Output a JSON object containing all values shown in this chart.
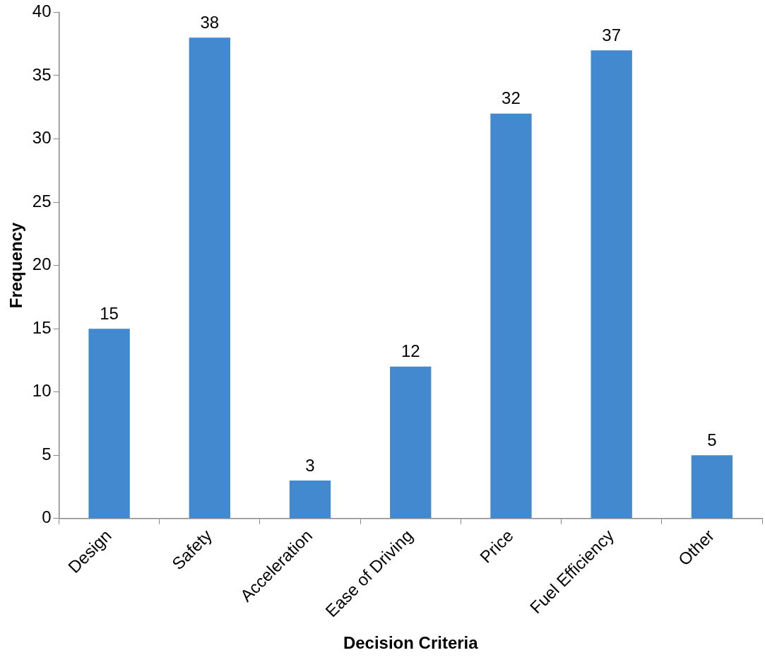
{
  "chart_data": {
    "type": "bar",
    "xlabel": "Decision Criteria",
    "ylabel": "Frequency",
    "categories": [
      "Design",
      "Safety",
      "Acceleration",
      "Ease of Driving",
      "Price",
      "Fuel Efficiency",
      "Other"
    ],
    "values": [
      15,
      38,
      3,
      12,
      32,
      37,
      5
    ],
    "color": "#4289cf",
    "ylim": [
      0,
      40
    ],
    "yticks": [
      0,
      5,
      10,
      15,
      20,
      25,
      30,
      35,
      40
    ],
    "grid": false,
    "legend": false,
    "data_labels": true
  }
}
